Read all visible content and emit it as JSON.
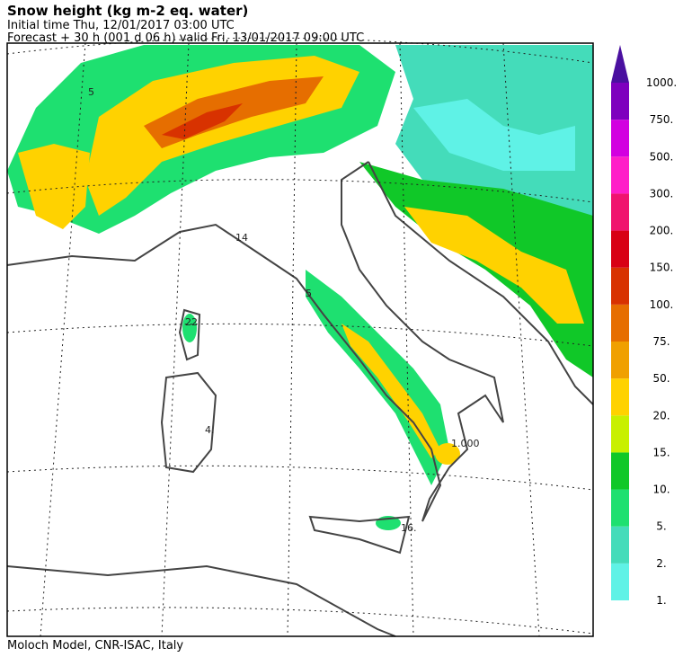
{
  "header": {
    "title": "Snow height (kg m-2 eq. water)",
    "initial_time": "Initial time  Thu, 12/01/2017  03:00 UTC",
    "forecast": "Forecast  +  30 h  (001 d 06 h)  valid Fri, 13/01/2017 09:00 UTC"
  },
  "footer": "Moloch Model, CNR-ISAC, Italy",
  "colorbar": {
    "labels": [
      "1.",
      "2.",
      "5.",
      "10.",
      "15.",
      "20.",
      "50.",
      "75.",
      "100.",
      "150.",
      "200.",
      "300.",
      "500.",
      "750.",
      "1000."
    ],
    "colors": [
      "#5ff2e6",
      "#44dcba",
      "#1ee070",
      "#10c828",
      "#c8f000",
      "#ffd200",
      "#f0a000",
      "#e66e00",
      "#d83200",
      "#d80014",
      "#f0146e",
      "#ff1ec8",
      "#d200e0",
      "#7e00be"
    ],
    "extend_color": "#4a10a0"
  },
  "map_labels": [
    "5",
    "14",
    "22",
    "4.",
    "1.000",
    "16.",
    "5"
  ]
}
